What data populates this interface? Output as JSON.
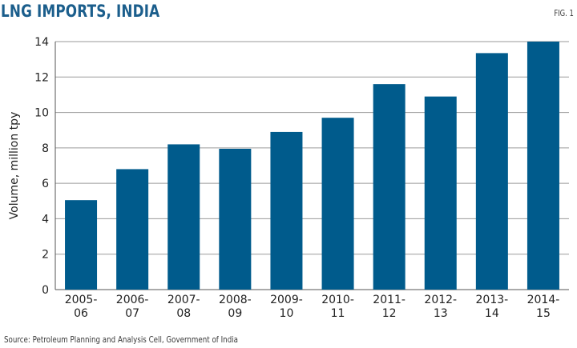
{
  "title": "LNG IMPORTS, INDIA",
  "fig_label": "FIG. 1",
  "source": "Source: Petroleum Planning and Analysis Cell, Government of India",
  "chart_data": {
    "type": "bar",
    "title": "LNG IMPORTS, INDIA",
    "xlabel": "",
    "ylabel": "Volume, million tpy",
    "categories": [
      [
        "2005-",
        "06"
      ],
      [
        "2006-",
        "07"
      ],
      [
        "2007-",
        "08"
      ],
      [
        "2008-",
        "09"
      ],
      [
        "2009-",
        "10"
      ],
      [
        "2010-",
        "11"
      ],
      [
        "2011-",
        "12"
      ],
      [
        "2012-",
        "13"
      ],
      [
        "2013-",
        "14"
      ],
      [
        "2014-",
        "15"
      ]
    ],
    "values": [
      5.05,
      6.8,
      8.2,
      7.95,
      8.9,
      9.7,
      11.6,
      10.9,
      13.35,
      14.0
    ],
    "ylim": [
      0,
      14
    ],
    "yticks": [
      0,
      2,
      4,
      6,
      8,
      10,
      12,
      14
    ],
    "bar_color": "#005b8c",
    "grid": true
  }
}
